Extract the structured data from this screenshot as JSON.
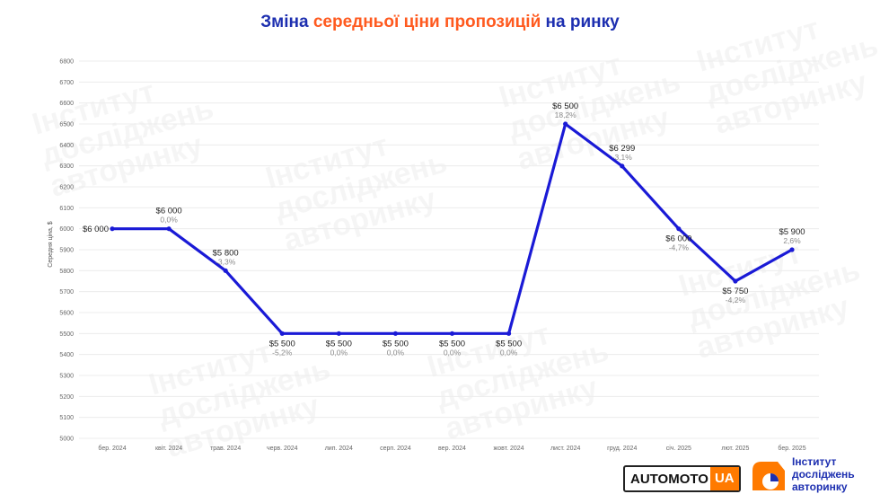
{
  "title": {
    "part1": "Зміна ",
    "part2": "середньої ціни пропозицій",
    "part3": " на ринку"
  },
  "chart_data": {
    "type": "line",
    "ylabel": "Середня ціна, $",
    "ylim": [
      5000,
      6800
    ],
    "yticks": [
      5000,
      5100,
      5200,
      5300,
      5400,
      5500,
      5600,
      5700,
      5800,
      5900,
      6000,
      6100,
      6200,
      6300,
      6400,
      6500,
      6600,
      6700,
      6800
    ],
    "categories": [
      "бер. 2024",
      "квіт. 2024",
      "трав. 2024",
      "черв. 2024",
      "лип. 2024",
      "серп. 2024",
      "вер. 2024",
      "жовт. 2024",
      "лист. 2024",
      "груд. 2024",
      "січ. 2025",
      "лют. 2025",
      "бер. 2025"
    ],
    "values": [
      6000,
      6000,
      5800,
      5500,
      5500,
      5500,
      5500,
      5500,
      6500,
      6299,
      6000,
      5750,
      5900
    ],
    "value_labels": [
      "$6 000",
      "$6 000",
      "$5 800",
      "$5 500",
      "$5 500",
      "$5 500",
      "$5 500",
      "$5 500",
      "$6 500",
      "$6 299",
      "$6 000",
      "$5 750",
      "$5 900"
    ],
    "change_labels": [
      "",
      "0,0%",
      "-3,3%",
      "-5,2%",
      "0,0%",
      "0,0%",
      "0,0%",
      "0,0%",
      "18,2%",
      "-3,1%",
      "-4,7%",
      "-4,2%",
      "2,6%"
    ],
    "line_color": "#1a1ad6",
    "grid": true
  },
  "logos": {
    "automoto_main": "AUTOMOTO",
    "automoto_ua": "UA",
    "institute_line1": "Інститут",
    "institute_line2": "досліджень",
    "institute_line3": "авторинку"
  },
  "watermark_text": [
    "Інститут",
    "досліджень",
    "авторинку"
  ],
  "colors": {
    "title_blue": "#1d2fb0",
    "title_orange": "#ff5a1f",
    "brand_orange": "#ff7a00"
  }
}
